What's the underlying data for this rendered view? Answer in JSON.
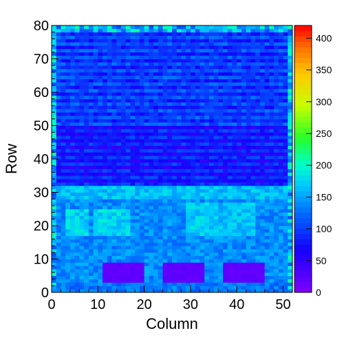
{
  "chart_data": {
    "type": "heatmap",
    "title": "",
    "xlabel": "Column",
    "ylabel": "Row",
    "xlim": [
      0,
      52
    ],
    "ylim": [
      0,
      80
    ],
    "x_ticks": [
      0,
      10,
      20,
      30,
      40,
      50
    ],
    "y_ticks": [
      0,
      10,
      20,
      30,
      40,
      50,
      60,
      70,
      80
    ],
    "colorbar": {
      "min": 0,
      "max": 420,
      "ticks": [
        0,
        50,
        100,
        150,
        200,
        250,
        300,
        350,
        400
      ],
      "palette": "rainbow (violet-blue-cyan-green-yellow-red)"
    },
    "grid": false,
    "bins": {
      "columns": 52,
      "rows": 80
    },
    "regions": [
      {
        "rows": [
          0,
          3
        ],
        "cols": [
          0,
          52
        ],
        "value": 130,
        "note": "bottom border rows"
      },
      {
        "rows": [
          3,
          30
        ],
        "cols": [
          0,
          52
        ],
        "value": 140,
        "note": "lower band, cyan"
      },
      {
        "rows": [
          17,
          25
        ],
        "cols": [
          3,
          8
        ],
        "value": 175,
        "note": "green patch"
      },
      {
        "rows": [
          17,
          25
        ],
        "cols": [
          9,
          17
        ],
        "value": 175,
        "note": "green patch"
      },
      {
        "rows": [
          17,
          27
        ],
        "cols": [
          29,
          36
        ],
        "value": 170,
        "note": "green patch"
      },
      {
        "rows": [
          17,
          27
        ],
        "cols": [
          36,
          44
        ],
        "value": 165,
        "note": "green patch"
      },
      {
        "rows": [
          28,
          32
        ],
        "cols": [
          0,
          52
        ],
        "value": 165,
        "note": "green band"
      },
      {
        "rows": [
          32,
          50
        ],
        "cols": [
          1,
          51
        ],
        "value": 75,
        "note": "middle band, deep blue"
      },
      {
        "rows": [
          50,
          78
        ],
        "cols": [
          1,
          51
        ],
        "value": 95,
        "note": "upper band, blue striped"
      },
      {
        "rows": [
          3,
          9
        ],
        "cols": [
          11,
          20
        ],
        "value": 15,
        "note": "violet low block"
      },
      {
        "rows": [
          3,
          9
        ],
        "cols": [
          24,
          33
        ],
        "value": 15,
        "note": "violet low block"
      },
      {
        "rows": [
          3,
          9
        ],
        "cols": [
          37,
          46
        ],
        "value": 15,
        "note": "violet low block"
      }
    ]
  }
}
